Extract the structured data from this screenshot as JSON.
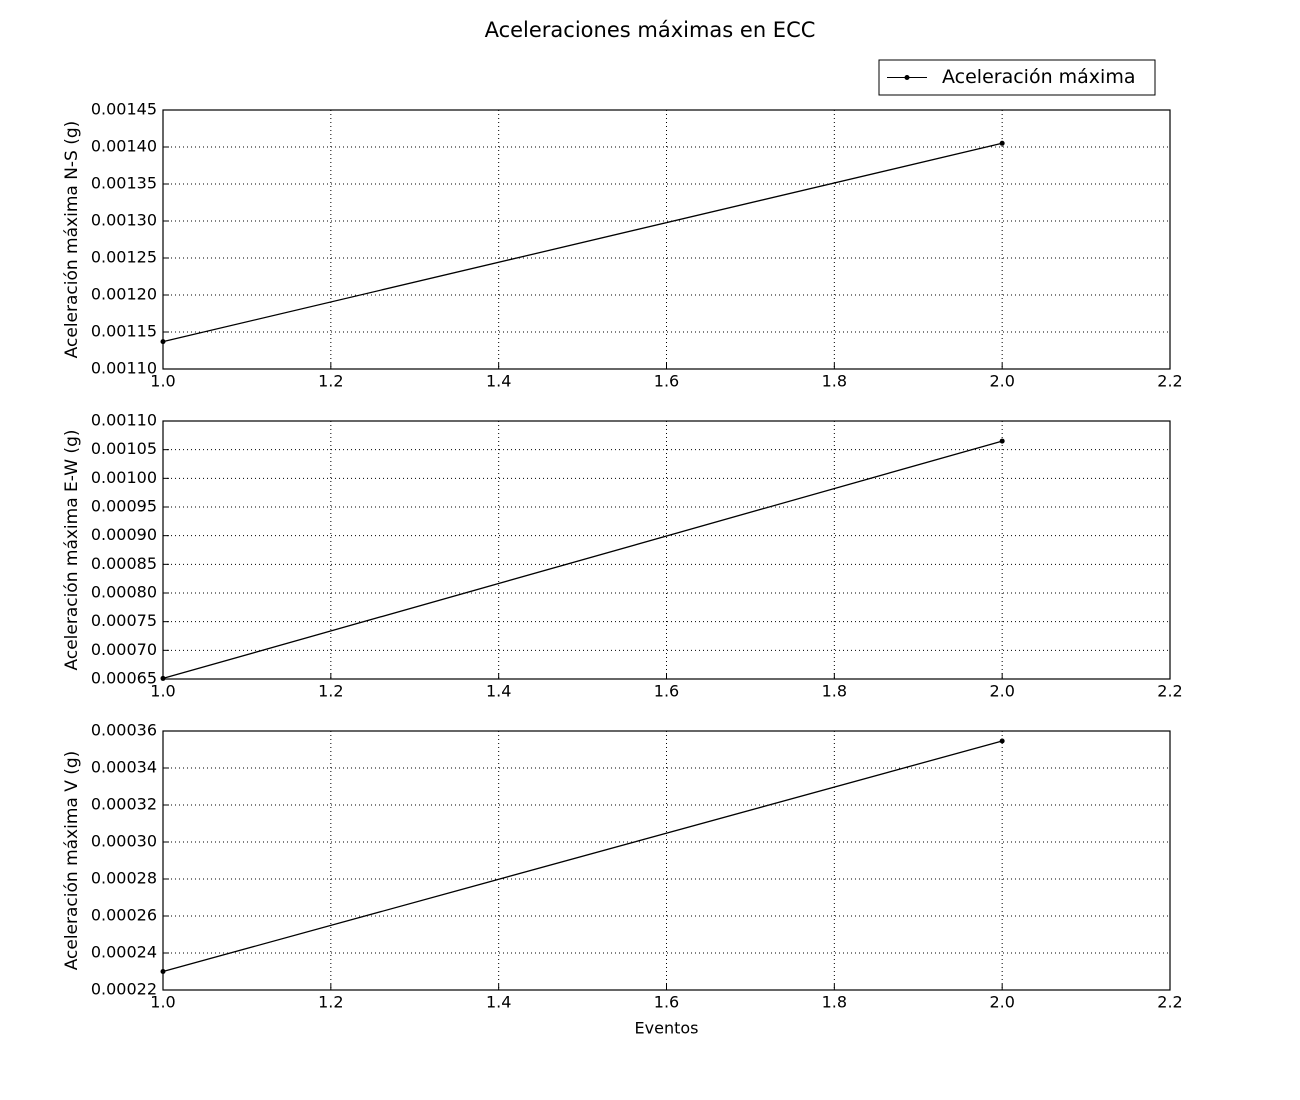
{
  "chart_data": [
    {
      "type": "line",
      "title": "Aceleraciones máximas en ECC",
      "ylabel": "Aceleración máxima N-S (g)",
      "legend": "upper right",
      "x": [
        1,
        2
      ],
      "series": [
        {
          "name": "Aceleración máxima",
          "color": "#000000",
          "values": [
            0.001137,
            0.001405
          ]
        }
      ],
      "xlim": [
        1,
        2.2
      ],
      "xticks": [
        {
          "value": 1,
          "label": "1.0"
        },
        1.2,
        1.4,
        1.6,
        1.8,
        {
          "value": 2,
          "label": "2.0"
        },
        2.2
      ],
      "ylim": [
        0.0011,
        0.00145
      ],
      "yticks": [
        {
          "value": 0.0011,
          "label": "0.00110"
        },
        0.00115,
        {
          "value": 0.0012,
          "label": "0.00120"
        },
        0.00125,
        {
          "value": 0.0013,
          "label": "0.00130"
        },
        0.00135,
        {
          "value": 0.0014,
          "label": "0.00140"
        },
        0.00145
      ],
      "grid": true
    },
    {
      "type": "line",
      "ylabel": "Aceleración máxima E-W (g)",
      "x": [
        1,
        2
      ],
      "series": [
        {
          "color": "#000000",
          "values": [
            0.000651,
            0.001065
          ]
        }
      ],
      "xlim": [
        1,
        2.2
      ],
      "xticks": [
        {
          "value": 1,
          "label": "1.0"
        },
        1.2,
        1.4,
        1.6,
        1.8,
        {
          "value": 2,
          "label": "2.0"
        },
        2.2
      ],
      "ylim": [
        0.00065,
        0.0011
      ],
      "yticks": [
        0.00065,
        {
          "value": 0.0007,
          "label": "0.00070"
        },
        0.00075,
        {
          "value": 0.0008,
          "label": "0.00080"
        },
        0.00085,
        {
          "value": 0.0009,
          "label": "0.00090"
        },
        0.00095,
        {
          "value": 0.001,
          "label": "0.00100"
        },
        0.00105,
        {
          "value": 0.0011,
          "label": "0.00110"
        }
      ],
      "grid": true
    },
    {
      "type": "line",
      "ylabel": "Aceleración máxima V (g)",
      "xlabel": "Eventos",
      "x": [
        1,
        2
      ],
      "series": [
        {
          "color": "#000000",
          "values": [
            0.00023,
            0.0003546
          ]
        }
      ],
      "xlim": [
        1,
        2.2
      ],
      "xticks": [
        {
          "value": 1,
          "label": "1.0"
        },
        1.2,
        1.4,
        1.6,
        1.8,
        {
          "value": 2,
          "label": "2.0"
        },
        2.2
      ],
      "ylim": [
        0.00022,
        0.00036
      ],
      "yticks": [
        0.00022,
        0.00024,
        0.00026,
        0.00028,
        {
          "value": 0.0003,
          "label": "0.00030"
        },
        0.00032,
        0.00034,
        0.00036
      ],
      "grid": true
    }
  ]
}
